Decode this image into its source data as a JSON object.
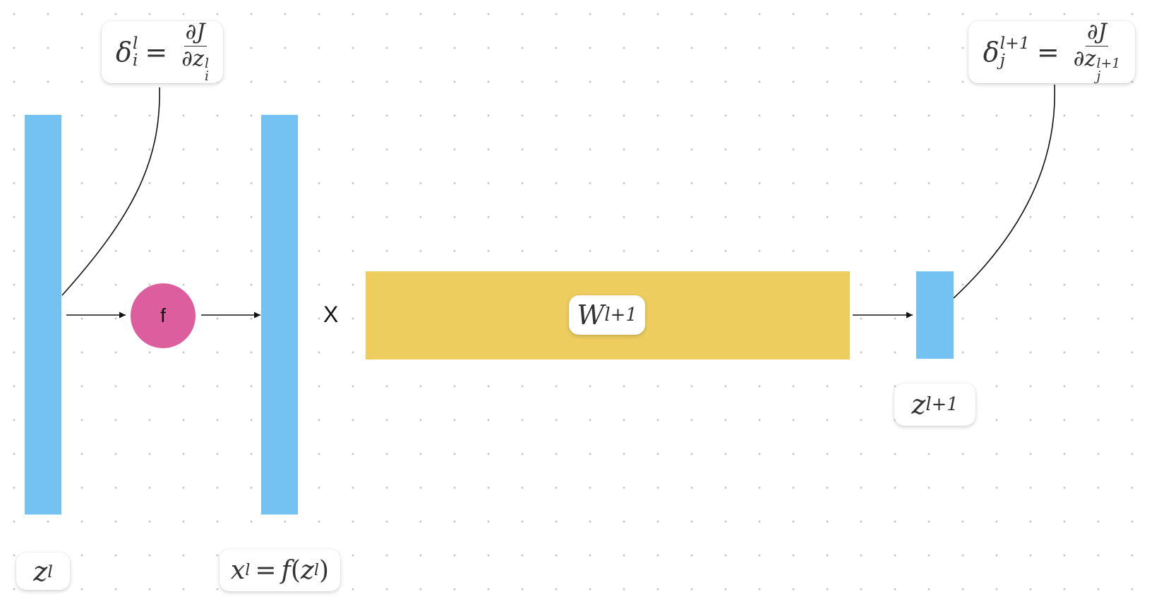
{
  "colors": {
    "vector": "#74c2f2",
    "weight": "#eecd5f",
    "activation": "#dc5e9e",
    "line": "#111111"
  },
  "nodes": {
    "activation": {
      "label": "f"
    },
    "multiply": {
      "label": "X"
    }
  },
  "labels": {
    "z_l": {
      "base": "z",
      "sup": "l"
    },
    "x_l": {
      "lhs_base": "x",
      "lhs_sup": "l",
      "eq": "=",
      "fn": "f",
      "open": "(",
      "arg_base": "z",
      "arg_sup": "l",
      "close": ")"
    },
    "W": {
      "base": "W",
      "sup": "l+1"
    },
    "z_next": {
      "base": "z",
      "sup": "l+1"
    }
  },
  "formulas": {
    "delta_i": {
      "symbol": "δ",
      "sup": "l",
      "sub": "i",
      "eq": "=",
      "num": "∂J",
      "den_prefix": "∂",
      "den_base": "z",
      "den_sup": "l",
      "den_sub": "i"
    },
    "delta_j": {
      "symbol": "δ",
      "sup": "l+1",
      "sub": "j",
      "eq": "=",
      "num": "∂J",
      "den_prefix": "∂",
      "den_base": "z",
      "den_sup": "l+1",
      "den_sub": "j"
    }
  }
}
